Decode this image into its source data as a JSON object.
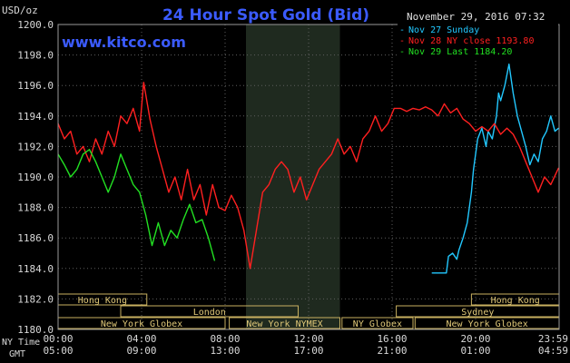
{
  "chart_data": {
    "type": "line",
    "title": "24 Hour Spot Gold (Bid)",
    "website": "www.kitco.com",
    "timestamp": "November 29, 2016 07:32",
    "ylabel": "USD/oz",
    "ylim": [
      1180.0,
      1200.0
    ],
    "yticks": [
      "1200.0",
      "1198.0",
      "1196.0",
      "1194.0",
      "1192.0",
      "1190.0",
      "1188.0",
      "1186.0",
      "1184.0",
      "1182.0",
      "1180.0"
    ],
    "xlim": [
      0,
      24
    ],
    "xticks": [
      {
        "ny": "00:00",
        "gmt": "05:00",
        "h": 0
      },
      {
        "ny": "04:00",
        "gmt": "09:00",
        "h": 4
      },
      {
        "ny": "08:00",
        "gmt": "13:00",
        "h": 8
      },
      {
        "ny": "12:00",
        "gmt": "17:00",
        "h": 12
      },
      {
        "ny": "16:00",
        "gmt": "21:00",
        "h": 16
      },
      {
        "ny": "20:00",
        "gmt": "01:00",
        "h": 20
      },
      {
        "ny": "23:59",
        "gmt": "04:59",
        "h": 23.98
      }
    ],
    "xaxis_row_labels": [
      "NY Time",
      "GMT"
    ],
    "shaded_period": [
      9.0,
      13.5
    ],
    "grid": true,
    "legend_position": "top-right",
    "series": [
      {
        "name": "Nov 27 Sunday",
        "color": "#22c8ff",
        "x": [
          17.9,
          18.6,
          18.7,
          18.9,
          19.1,
          19.2,
          19.4,
          19.6,
          19.8,
          19.9,
          20.1,
          20.3,
          20.5,
          20.6,
          20.8,
          21.0,
          21.1,
          21.2,
          21.4,
          21.6,
          21.8,
          22.0,
          22.2,
          22.4,
          22.6,
          22.8,
          23.0,
          23.2,
          23.4,
          23.6,
          23.8,
          23.98
        ],
        "y": [
          1183.7,
          1183.7,
          1184.8,
          1185.0,
          1184.6,
          1185.2,
          1186.0,
          1187.0,
          1189.0,
          1190.5,
          1192.5,
          1193.2,
          1192.0,
          1193.0,
          1192.5,
          1194.0,
          1195.5,
          1195.0,
          1196.0,
          1197.4,
          1195.5,
          1194.0,
          1193.0,
          1192.0,
          1190.8,
          1191.5,
          1191.0,
          1192.5,
          1193.0,
          1194.0,
          1193.0,
          1193.2
        ]
      },
      {
        "name": "Nov 28 NY close 1193.80",
        "color": "#ff2020",
        "x": [
          0,
          0.3,
          0.6,
          0.9,
          1.2,
          1.5,
          1.8,
          2.1,
          2.4,
          2.7,
          3.0,
          3.3,
          3.6,
          3.9,
          4.1,
          4.4,
          4.7,
          5.0,
          5.3,
          5.6,
          5.9,
          6.2,
          6.5,
          6.8,
          7.1,
          7.4,
          7.7,
          8.0,
          8.3,
          8.6,
          8.9,
          9.2,
          9.5,
          9.8,
          10.1,
          10.4,
          10.7,
          11.0,
          11.3,
          11.6,
          11.9,
          12.2,
          12.5,
          12.8,
          13.1,
          13.4,
          13.7,
          14.0,
          14.3,
          14.6,
          14.9,
          15.2,
          15.5,
          15.8,
          16.1,
          16.4,
          16.7,
          17.0,
          17.3,
          17.6,
          17.9,
          18.2,
          18.5,
          18.8,
          19.1,
          19.4,
          19.7,
          20.0,
          20.3,
          20.6,
          20.9,
          21.2,
          21.5,
          21.8,
          22.1,
          22.4,
          22.7,
          23.0,
          23.3,
          23.6,
          23.98
        ],
        "y": [
          1193.5,
          1192.5,
          1193.0,
          1191.5,
          1192.0,
          1191.0,
          1192.5,
          1191.5,
          1193.0,
          1192.0,
          1194.0,
          1193.5,
          1194.5,
          1193.0,
          1196.2,
          1193.8,
          1192.0,
          1190.5,
          1189.0,
          1190.0,
          1188.5,
          1190.5,
          1188.5,
          1189.5,
          1187.5,
          1189.5,
          1188.0,
          1187.8,
          1188.8,
          1188.0,
          1186.5,
          1184.0,
          1186.5,
          1189.0,
          1189.5,
          1190.5,
          1191.0,
          1190.5,
          1189.0,
          1190.0,
          1188.5,
          1189.5,
          1190.5,
          1191.0,
          1191.5,
          1192.5,
          1191.5,
          1192.0,
          1191.0,
          1192.5,
          1193.0,
          1194.0,
          1193.0,
          1193.5,
          1194.5,
          1194.5,
          1194.3,
          1194.5,
          1194.4,
          1194.6,
          1194.4,
          1194.0,
          1194.8,
          1194.2,
          1194.5,
          1193.8,
          1193.5,
          1193.0,
          1193.3,
          1193.0,
          1193.5,
          1192.8,
          1193.2,
          1192.8,
          1192.0,
          1191.0,
          1190.0,
          1189.0,
          1190.0,
          1189.5,
          1190.6
        ]
      },
      {
        "name": "Nov 29 Last 1184.20",
        "color": "#22e022",
        "x": [
          0,
          0.3,
          0.6,
          0.9,
          1.2,
          1.5,
          1.8,
          2.1,
          2.4,
          2.7,
          3.0,
          3.3,
          3.6,
          3.9,
          4.2,
          4.5,
          4.8,
          5.1,
          5.4,
          5.7,
          6.0,
          6.3,
          6.6,
          6.9,
          7.2,
          7.5
        ],
        "y": [
          1191.5,
          1190.8,
          1190.0,
          1190.5,
          1191.5,
          1191.8,
          1191.0,
          1190.0,
          1189.0,
          1190.0,
          1191.5,
          1190.5,
          1189.5,
          1189.0,
          1187.5,
          1185.5,
          1187.0,
          1185.5,
          1186.5,
          1186.0,
          1187.2,
          1188.2,
          1187.0,
          1187.2,
          1186.0,
          1184.5
        ]
      }
    ],
    "sessions": {
      "row1": [
        {
          "label": "Hong Kong",
          "start": 0,
          "end": 4.25
        },
        {
          "label": "Hong Kong",
          "start": 19.8,
          "end": 24
        }
      ],
      "row2": [
        {
          "label": "London",
          "start": 3.0,
          "end": 11.5
        }
      ],
      "row3": [
        {
          "label": "Sydney",
          "start": 16.2,
          "end": 24
        }
      ],
      "row4": [
        {
          "label": "New York Globex",
          "start": 0,
          "end": 8.0
        },
        {
          "label": "New York NYMEX",
          "start": 8.2,
          "end": 13.5
        },
        {
          "label": "NY Globex",
          "start": 13.6,
          "end": 17.0
        },
        {
          "label": "New York Globex",
          "start": 17.1,
          "end": 24
        }
      ]
    }
  }
}
